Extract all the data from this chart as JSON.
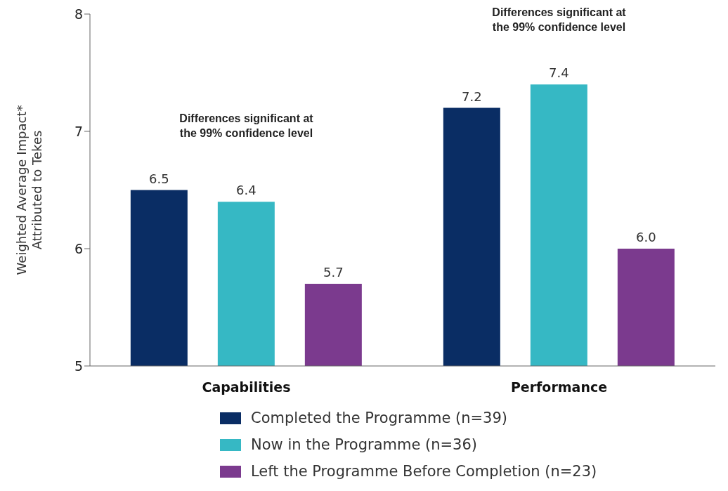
{
  "chart_data": {
    "type": "bar",
    "ylabel": "Weighted Average Impact* Attributed to Tekes",
    "categories": [
      "Capabilities",
      "Performance"
    ],
    "series": [
      {
        "name": "Completed the Programme (n=39)",
        "color": "#0a2d64",
        "values": [
          6.5,
          7.2
        ],
        "value_labels": [
          "6.5",
          "7.2"
        ]
      },
      {
        "name": "Now in the Programme (n=36)",
        "color": "#36b8c4",
        "values": [
          6.4,
          7.4
        ],
        "value_labels": [
          "6.4",
          "7.4"
        ]
      },
      {
        "name": "Left the Programme Before Completion (n=23)",
        "color": "#7b3a8e",
        "values": [
          5.7,
          6.0
        ],
        "value_labels": [
          "5.7",
          "6.0"
        ]
      }
    ],
    "ylim": [
      5,
      8
    ],
    "yticks": [
      5,
      6,
      7,
      8
    ],
    "grid": false,
    "legend": "bottom",
    "annotations": [
      "Differences significant at the 99% confidence level",
      "Differences significant at the 99% confidence level"
    ]
  }
}
